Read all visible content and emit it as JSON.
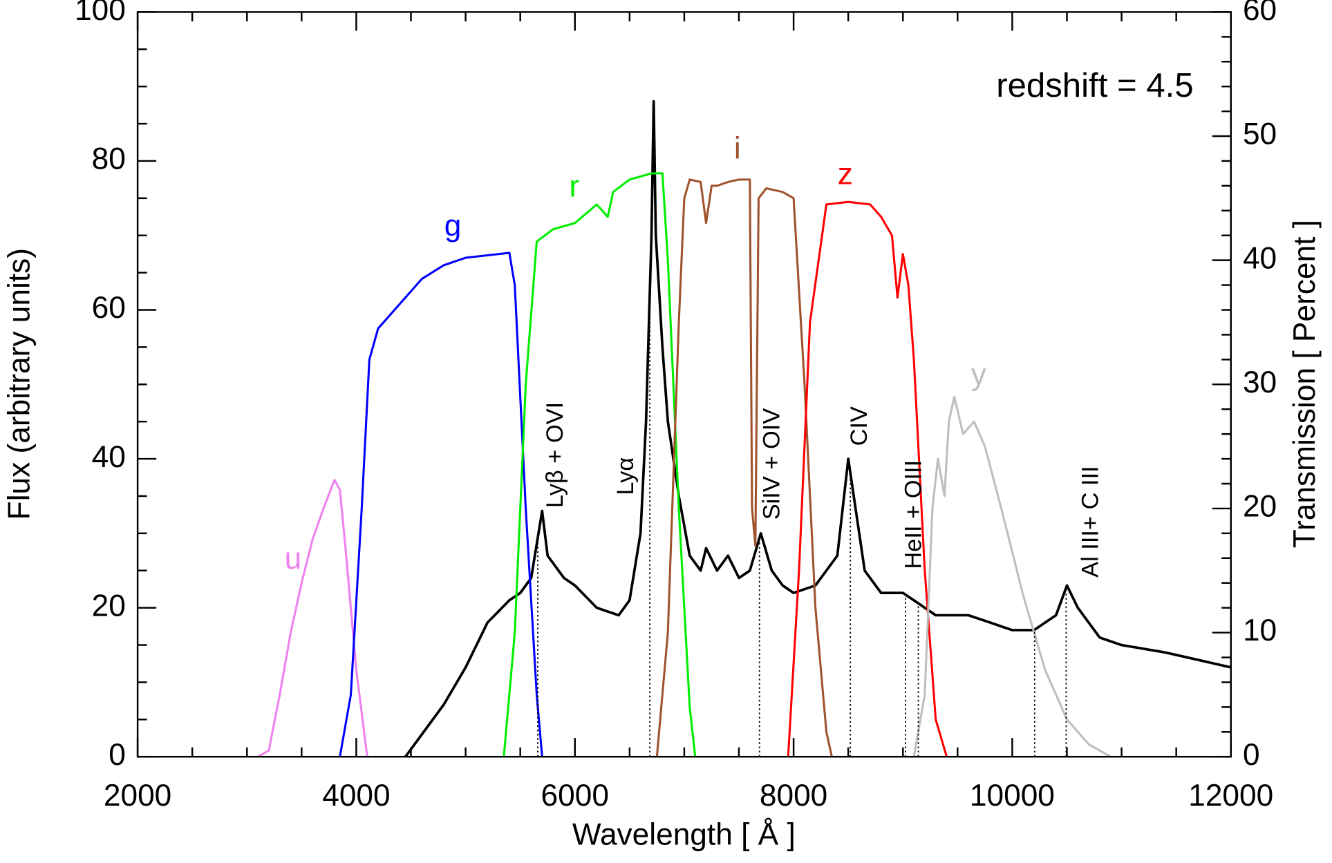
{
  "chart_data": {
    "type": "line",
    "xlabel": "Wavelength [ Å ]",
    "ylabel": "Flux (arbitrary units)",
    "y2label": "Transmission [ Percent ]",
    "xlim": [
      2000,
      12000
    ],
    "xticks": [
      2000,
      4000,
      6000,
      8000,
      10000,
      12000
    ],
    "ylim": [
      0,
      100
    ],
    "yticks": [
      0,
      20,
      40,
      60,
      80,
      100
    ],
    "y2lim": [
      0,
      60
    ],
    "y2ticks": [
      0,
      10,
      20,
      30,
      40,
      50,
      60
    ],
    "annotation": "redshift = 4.5",
    "series": [
      {
        "color": "#000000",
        "axis": "y",
        "x": [
          4450,
          4600,
          4800,
          5000,
          5200,
          5400,
          5500,
          5600,
          5700,
          5750,
          5900,
          6000,
          6200,
          6400,
          6500,
          6600,
          6650,
          6700,
          6720,
          6740,
          6800,
          6850,
          6950,
          7050,
          7150,
          7200,
          7300,
          7400,
          7500,
          7600,
          7700,
          7800,
          7900,
          8000,
          8200,
          8400,
          8500,
          8550,
          8650,
          8800,
          9000,
          9100,
          9300,
          9600,
          9800,
          10000,
          10200,
          10300,
          10400,
          10500,
          10600,
          10800,
          11000,
          11400,
          11700,
          12000
        ],
        "values": [
          0,
          3,
          7,
          12,
          18,
          21,
          22,
          24,
          33,
          27,
          24,
          23,
          20,
          19,
          21,
          30,
          45,
          70,
          88,
          70,
          55,
          45,
          35,
          27,
          25,
          28,
          25,
          27,
          24,
          25,
          30,
          25,
          23,
          22,
          23,
          27,
          40,
          35,
          25,
          22,
          22,
          21,
          19,
          19,
          18,
          17,
          17,
          18,
          19,
          23,
          20,
          16,
          15,
          14,
          13,
          12
        ]
      },
      {
        "name": "u",
        "color": "#ee82ee",
        "axis": "y2",
        "x": [
          3100,
          3200,
          3300,
          3400,
          3500,
          3600,
          3700,
          3800,
          3850,
          3900,
          4000,
          4100
        ],
        "values": [
          0,
          0.5,
          5,
          10,
          14,
          17.5,
          20,
          22.3,
          21.5,
          17,
          7,
          0
        ]
      },
      {
        "name": "g",
        "color": "#0000ff",
        "axis": "y2",
        "x": [
          3850,
          3950,
          4050,
          4120,
          4200,
          4400,
          4600,
          4800,
          5000,
          5200,
          5400,
          5450,
          5550,
          5650,
          5700
        ],
        "values": [
          0,
          5,
          20,
          32,
          34.5,
          36.5,
          38.5,
          39.6,
          40.2,
          40.4,
          40.6,
          38,
          20,
          5,
          0
        ]
      },
      {
        "name": "r",
        "color": "#00ee00",
        "axis": "y2",
        "x": [
          5350,
          5450,
          5550,
          5650,
          5800,
          6000,
          6200,
          6300,
          6350,
          6500,
          6700,
          6800,
          6850,
          6950,
          7050,
          7100
        ],
        "values": [
          0,
          10,
          30,
          41.5,
          42.5,
          43,
          44.5,
          43.5,
          45.5,
          46.5,
          47,
          47,
          40,
          20,
          4,
          0
        ]
      },
      {
        "name": "i",
        "color": "#a0522d",
        "axis": "y2",
        "x": [
          6750,
          6850,
          6950,
          7000,
          7050,
          7150,
          7200,
          7250,
          7300,
          7400,
          7500,
          7600,
          7620,
          7650,
          7680,
          7750,
          7900,
          8000,
          8100,
          8200,
          8300,
          8350
        ],
        "values": [
          0,
          10,
          35,
          45,
          46.5,
          46.3,
          43,
          46,
          46,
          46.3,
          46.5,
          46.5,
          20,
          17,
          45,
          45.8,
          45.5,
          45,
          30,
          12,
          2,
          0
        ]
      },
      {
        "name": "z",
        "color": "#ff0000",
        "axis": "y2",
        "x": [
          7950,
          8050,
          8150,
          8300,
          8500,
          8700,
          8800,
          8900,
          8950,
          9000,
          9050,
          9100,
          9200,
          9300,
          9400
        ],
        "values": [
          0,
          15,
          35,
          44.5,
          44.7,
          44.5,
          43.5,
          42,
          37,
          40.5,
          38,
          32,
          15,
          3,
          0
        ]
      },
      {
        "name": "y",
        "color": "#bebebe",
        "axis": "y2",
        "x": [
          9100,
          9200,
          9270,
          9320,
          9380,
          9420,
          9470,
          9550,
          9650,
          9750,
          9900,
          10100,
          10300,
          10500,
          10700,
          10900
        ],
        "values": [
          0,
          5,
          20,
          24,
          21,
          27,
          29,
          26,
          27,
          25,
          20,
          13,
          7,
          3,
          1,
          0
        ]
      }
    ],
    "annotations": [
      {
        "text": "Lyβ + OVI",
        "x": [
          5660
        ]
      },
      {
        "text": "Lyα",
        "x": [
          6685
        ]
      },
      {
        "text": "SiIV + OIV",
        "x": [
          7688
        ]
      },
      {
        "text": "CIV",
        "x": [
          8519
        ]
      },
      {
        "text": "HeII + OIII",
        "x": [
          9024,
          9141
        ]
      },
      {
        "text": "Al III+ C III",
        "x": [
          10205,
          10493
        ]
      }
    ]
  }
}
